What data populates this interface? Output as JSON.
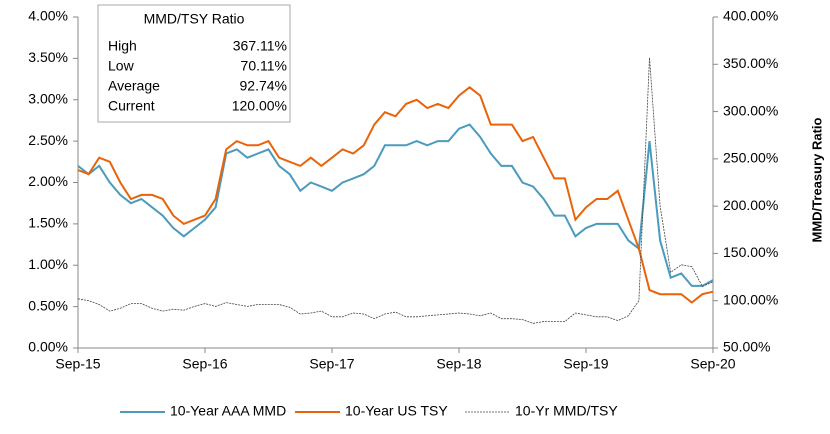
{
  "chart_data": {
    "type": "line",
    "categories": [
      "Sep-15",
      "Oct-15",
      "Nov-15",
      "Dec-15",
      "Jan-16",
      "Feb-16",
      "Mar-16",
      "Apr-16",
      "May-16",
      "Jun-16",
      "Jul-16",
      "Aug-16",
      "Sep-16",
      "Oct-16",
      "Nov-16",
      "Dec-16",
      "Jan-17",
      "Feb-17",
      "Mar-17",
      "Apr-17",
      "May-17",
      "Jun-17",
      "Jul-17",
      "Aug-17",
      "Sep-17",
      "Oct-17",
      "Nov-17",
      "Dec-17",
      "Jan-18",
      "Feb-18",
      "Mar-18",
      "Apr-18",
      "May-18",
      "Jun-18",
      "Jul-18",
      "Aug-18",
      "Sep-18",
      "Oct-18",
      "Nov-18",
      "Dec-18",
      "Jan-19",
      "Feb-19",
      "Mar-19",
      "Apr-19",
      "May-19",
      "Jun-19",
      "Jul-19",
      "Aug-19",
      "Sep-19",
      "Oct-19",
      "Nov-19",
      "Dec-19",
      "Jan-20",
      "Feb-20",
      "Mar-20",
      "Apr-20",
      "May-20",
      "Jun-20",
      "Jul-20",
      "Aug-20",
      "Sep-20"
    ],
    "xticks": [
      "Sep-15",
      "Sep-16",
      "Sep-17",
      "Sep-18",
      "Sep-19",
      "Sep-20"
    ],
    "series": [
      {
        "name": "10-Year AAA MMD",
        "color": "#4a9bbd",
        "values": [
          2.2,
          2.1,
          2.2,
          2.0,
          1.85,
          1.75,
          1.8,
          1.7,
          1.6,
          1.45,
          1.35,
          1.45,
          1.55,
          1.7,
          2.35,
          2.4,
          2.3,
          2.35,
          2.4,
          2.2,
          2.1,
          1.9,
          2.0,
          1.95,
          1.9,
          2.0,
          2.05,
          2.1,
          2.2,
          2.45,
          2.45,
          2.45,
          2.5,
          2.45,
          2.5,
          2.5,
          2.65,
          2.7,
          2.55,
          2.35,
          2.2,
          2.2,
          2.0,
          1.95,
          1.8,
          1.6,
          1.6,
          1.35,
          1.45,
          1.5,
          1.5,
          1.5,
          1.3,
          1.2,
          2.5,
          1.3,
          0.85,
          0.9,
          0.75,
          0.75,
          0.82
        ]
      },
      {
        "name": "10-Year US TSY",
        "color": "#e8630a",
        "values": [
          2.15,
          2.1,
          2.3,
          2.25,
          2.0,
          1.8,
          1.85,
          1.85,
          1.8,
          1.6,
          1.5,
          1.55,
          1.6,
          1.8,
          2.4,
          2.5,
          2.45,
          2.45,
          2.5,
          2.3,
          2.25,
          2.2,
          2.3,
          2.2,
          2.3,
          2.4,
          2.35,
          2.45,
          2.7,
          2.85,
          2.8,
          2.95,
          3.0,
          2.9,
          2.95,
          2.9,
          3.05,
          3.15,
          3.05,
          2.7,
          2.7,
          2.7,
          2.5,
          2.55,
          2.3,
          2.05,
          2.05,
          1.55,
          1.7,
          1.8,
          1.8,
          1.9,
          1.55,
          1.2,
          0.7,
          0.65,
          0.65,
          0.65,
          0.55,
          0.65,
          0.68
        ]
      },
      {
        "name": "10-Yr MMD/TSY",
        "color": "#444444",
        "axis": "y2",
        "values": [
          102,
          100,
          96,
          89,
          92,
          97,
          97,
          92,
          89,
          91,
          90,
          94,
          97,
          94,
          98,
          96,
          94,
          96,
          96,
          96,
          93,
          86,
          87,
          89,
          83,
          83,
          87,
          86,
          81,
          86,
          88,
          83,
          83,
          84,
          85,
          86,
          87,
          86,
          84,
          87,
          81,
          81,
          80,
          76,
          78,
          78,
          78,
          87,
          85,
          83,
          83,
          79,
          84,
          100,
          357,
          200,
          130,
          138,
          136,
          115,
          120
        ]
      }
    ],
    "ylim": [
      0,
      4
    ],
    "yticks": [
      {
        "value": 0,
        "label": "0.00%"
      },
      {
        "value": 0.5,
        "label": "0.50%"
      },
      {
        "value": 1,
        "label": "1.00%"
      },
      {
        "value": 1.5,
        "label": "1.50%"
      },
      {
        "value": 2,
        "label": "2.00%"
      },
      {
        "value": 2.5,
        "label": "2.50%"
      },
      {
        "value": 3,
        "label": "3.00%"
      },
      {
        "value": 3.5,
        "label": "3.50%"
      },
      {
        "value": 4,
        "label": "4.00%"
      }
    ],
    "y2lim": [
      50,
      400
    ],
    "y2ticks": [
      {
        "value": 50,
        "label": "50.00%"
      },
      {
        "value": 100,
        "label": "100.00%"
      },
      {
        "value": 150,
        "label": "150.00%"
      },
      {
        "value": 200,
        "label": "200.00%"
      },
      {
        "value": 250,
        "label": "250.00%"
      },
      {
        "value": 300,
        "label": "300.00%"
      },
      {
        "value": 350,
        "label": "350.00%"
      },
      {
        "value": 400,
        "label": "400.00%"
      }
    ],
    "y2label": "MMD/Treasury Ratio",
    "annotation": {
      "title": "MMD/TSY Ratio",
      "rows": [
        [
          "High",
          "367.11%"
        ],
        [
          "Low",
          "70.11%"
        ],
        [
          "Average",
          "92.74%"
        ],
        [
          "Current",
          "120.00%"
        ]
      ]
    },
    "legend": "bottom"
  }
}
